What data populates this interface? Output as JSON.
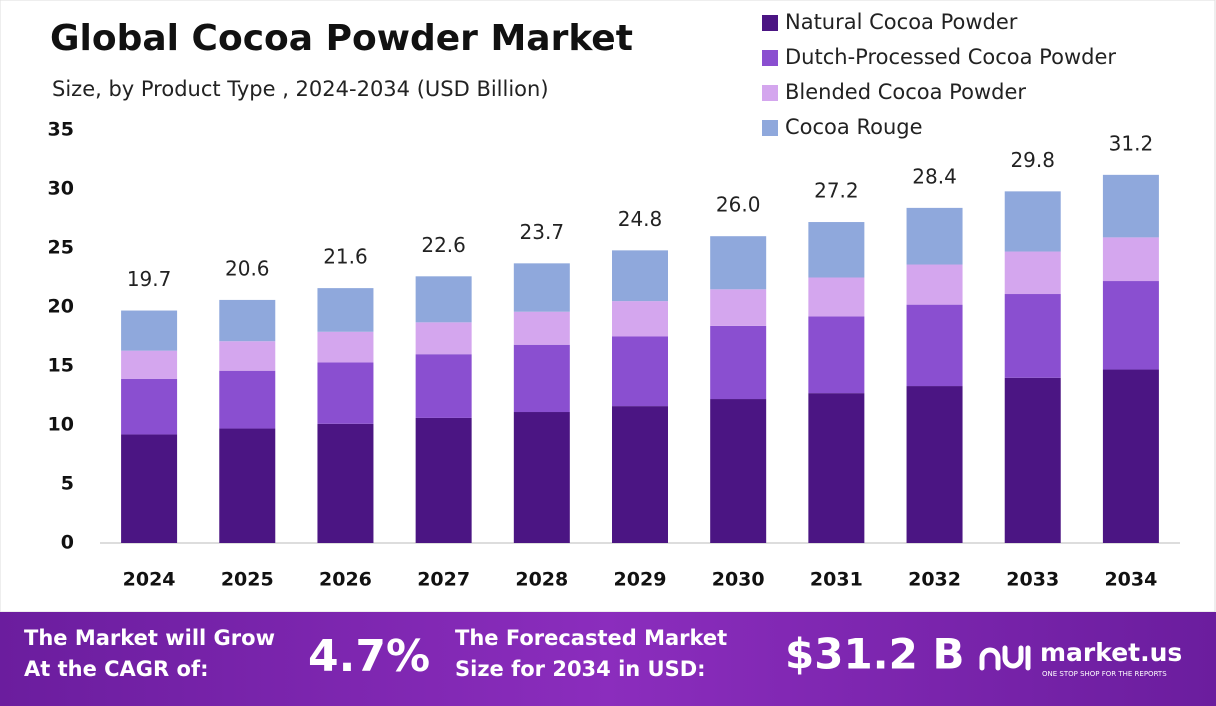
{
  "chart_data": {
    "type": "stacked-bar",
    "title": "Global Cocoa Powder Market",
    "subtitle": "Size, by Product Type , 2024-2034 (USD Billion)",
    "categories": [
      "2024",
      "2025",
      "2026",
      "2027",
      "2028",
      "2029",
      "2030",
      "2031",
      "2032",
      "2033",
      "2034"
    ],
    "series": [
      {
        "name": "Natural Cocoa Powder",
        "color": "#4b1583",
        "values": [
          9.2,
          9.7,
          10.1,
          10.6,
          11.1,
          11.6,
          12.2,
          12.7,
          13.3,
          14.0,
          14.7
        ]
      },
      {
        "name": "Dutch-Processed Cocoa Powder",
        "color": "#8a4fd0",
        "values": [
          4.7,
          4.9,
          5.2,
          5.4,
          5.7,
          5.9,
          6.2,
          6.5,
          6.9,
          7.1,
          7.5
        ]
      },
      {
        "name": "Blended Cocoa Powder",
        "color": "#d4a6ee",
        "values": [
          2.4,
          2.5,
          2.6,
          2.7,
          2.8,
          3.0,
          3.1,
          3.3,
          3.4,
          3.6,
          3.7
        ]
      },
      {
        "name": "Cocoa Rouge",
        "color": "#8fa8dc",
        "values": [
          3.4,
          3.5,
          3.7,
          3.9,
          4.1,
          4.3,
          4.5,
          4.7,
          4.8,
          5.1,
          5.3
        ]
      }
    ],
    "totals": {
      "values": [
        19.7,
        20.6,
        21.6,
        22.6,
        23.7,
        24.8,
        26.0,
        27.2,
        28.4,
        29.8,
        31.2
      ],
      "value_labels": [
        "19.7",
        "20.6",
        "21.6",
        "22.6",
        "23.7",
        "24.8",
        "26.0",
        "27.2",
        "28.4",
        "29.8",
        "31.2"
      ]
    },
    "ylim": [
      0,
      35
    ],
    "yticks": [
      0,
      5,
      10,
      15,
      20,
      25,
      30,
      35
    ],
    "grid": false,
    "legend": "top-right"
  },
  "footer": {
    "cagr_label": [
      "The Market will Grow",
      "At the CAGR of:"
    ],
    "cagr_value": "4.7%",
    "forecast_label": [
      "The Forecasted Market",
      "Size for 2034 in USD:"
    ],
    "forecast_value": "$31.2 B",
    "brand": "market.us",
    "tagline": "ONE STOP SHOP FOR THE REPORTS"
  }
}
